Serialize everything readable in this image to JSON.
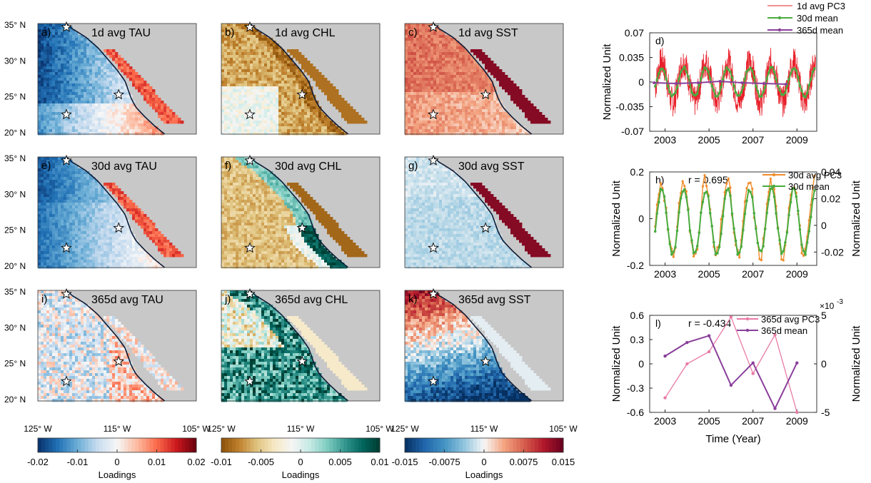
{
  "colors": {
    "land": "#c8c8c8",
    "coast": "#0d1b36",
    "series_red": "#e8202a",
    "series_green": "#4aab3f",
    "series_purple": "#8a3f9a",
    "series_orange": "#f08c2a",
    "series_pink": "#e87aa5",
    "tau_cmap": [
      "#08306b",
      "#2171b5",
      "#6baed6",
      "#c6dbef",
      "#f7f7f7",
      "#fcbba1",
      "#fb6a4a",
      "#cb181d",
      "#67000d"
    ],
    "chl_cmap": [
      "#8c510a",
      "#bf812d",
      "#dfc27d",
      "#f6e8c3",
      "#f5f5f5",
      "#c7eae5",
      "#80cdc1",
      "#35978f",
      "#01665e",
      "#003c30"
    ],
    "sst_cmap": [
      "#053061",
      "#2166ac",
      "#4393c3",
      "#92c5de",
      "#f7f7f7",
      "#f4a582",
      "#d6604d",
      "#b2182b",
      "#67001f"
    ]
  },
  "maps": {
    "lat_ticks": [
      "35° N",
      "30° N",
      "25° N",
      "20° N"
    ],
    "lon_ticks": [
      "125° W",
      "115° W",
      "105° W"
    ],
    "panels": [
      {
        "label": "a)",
        "title": "1d avg TAU",
        "var": "tau",
        "scale": "1d"
      },
      {
        "label": "b)",
        "title": "1d avg CHL",
        "var": "chl",
        "scale": "1d"
      },
      {
        "label": "c)",
        "title": "1d avg SST",
        "var": "sst",
        "scale": "1d"
      },
      {
        "label": "e)",
        "title": "30d avg TAU",
        "var": "tau",
        "scale": "30d"
      },
      {
        "label": "f)",
        "title": "30d avg CHL",
        "var": "chl",
        "scale": "30d"
      },
      {
        "label": "g)",
        "title": "30d avg SST",
        "var": "sst",
        "scale": "30d"
      },
      {
        "label": "i)",
        "title": "365d avg TAU",
        "var": "tau",
        "scale": "365d"
      },
      {
        "label": "j)",
        "title": "365d avg CHL",
        "var": "chl",
        "scale": "365d"
      },
      {
        "label": "k)",
        "title": "365d avg SST",
        "var": "sst",
        "scale": "365d"
      }
    ]
  },
  "colorbars": [
    {
      "ticks": [
        "-0.02",
        "-0.01",
        "0",
        "0.01",
        "0.02"
      ],
      "label": "Loadings"
    },
    {
      "ticks": [
        "-0.01",
        "-0.005",
        "0",
        "0.005",
        "0.01"
      ],
      "label": "Loadings"
    },
    {
      "ticks": [
        "-0.015",
        "-0.0075",
        "0",
        "0.0075",
        "0.015"
      ],
      "label": "Loadings"
    }
  ],
  "chart_data": [
    {
      "type": "line",
      "panel": "d)",
      "ylabel": "Normalized Unit",
      "ylim": [
        -0.07,
        0.07
      ],
      "yticks": [
        "0.07",
        "0.035",
        "0",
        "-0.035",
        "-0.07"
      ],
      "xlim": [
        2002.3,
        2009.9
      ],
      "xticks": [
        "2003",
        "2005",
        "2007",
        "2009"
      ],
      "legend": [
        "1d avg PC3",
        "30d mean",
        "365d mean"
      ],
      "series": [
        {
          "name": "1d avg PC3",
          "kind": "daily_noise",
          "amplitude": 0.028,
          "noise": 0.022
        },
        {
          "name": "30d mean",
          "kind": "monthly",
          "amplitude": 0.02
        },
        {
          "name": "365d mean",
          "kind": "annual",
          "x": [
            2002.5,
            2003.5,
            2004.5,
            2005.5,
            2006.5,
            2007.5,
            2008.5
          ],
          "values": [
            -0.001,
            -0.002,
            -0.001,
            0.001,
            -0.001,
            -0.002,
            -0.003
          ]
        }
      ]
    },
    {
      "type": "line",
      "panel": "h)",
      "annotation": "r = 0.695",
      "ylabel_left": "Normalized Unit",
      "ylabel_right": "Normalized Unit",
      "ylim_left": [
        -0.2,
        0.2
      ],
      "yticks_left": [
        "0.2",
        "0",
        "-0.2"
      ],
      "ylim_right": [
        -0.03,
        0.04
      ],
      "yticks_right": [
        "0.04",
        "0.02",
        "0",
        "-0.02"
      ],
      "xlim": [
        2002.3,
        2009.9
      ],
      "xticks": [
        "2003",
        "2005",
        "2007",
        "2009"
      ],
      "legend": [
        "30d avg PC3",
        "30d mean"
      ],
      "series": [
        {
          "name": "30d avg PC3",
          "kind": "monthly",
          "amplitude": 0.16
        },
        {
          "name": "30d mean",
          "kind": "monthly",
          "amplitude": 0.024
        }
      ]
    },
    {
      "type": "line",
      "panel": "l)",
      "annotation": "r = -0.434",
      "exponent_label": "×10",
      "exponent": "-3",
      "ylabel_left": "Normalized Unit",
      "ylabel_right": "Normalized Unit",
      "xlabel": "Time (Year)",
      "ylim_left": [
        -0.6,
        0.6
      ],
      "yticks_left": [
        "0.6",
        "0.3",
        "0",
        "-0.3",
        "-0.6"
      ],
      "ylim_right": [
        -5,
        5
      ],
      "yticks_right": [
        "5",
        "0",
        "-5"
      ],
      "xlim": [
        2002.3,
        2009.9
      ],
      "xticks": [
        "2003",
        "2005",
        "2007",
        "2009"
      ],
      "legend": [
        "365d avg PC3",
        "365d mean"
      ],
      "x": [
        2003,
        2004,
        2005,
        2006,
        2007,
        2008,
        2009
      ],
      "series": [
        {
          "name": "365d avg PC3",
          "axis": "left",
          "values": [
            -0.42,
            0.0,
            0.15,
            0.58,
            -0.12,
            0.36,
            -0.6
          ]
        },
        {
          "name": "365d mean",
          "axis": "right",
          "values": [
            0.8,
            2.2,
            2.9,
            -2.2,
            0.1,
            -4.6,
            0.1
          ]
        }
      ]
    }
  ]
}
